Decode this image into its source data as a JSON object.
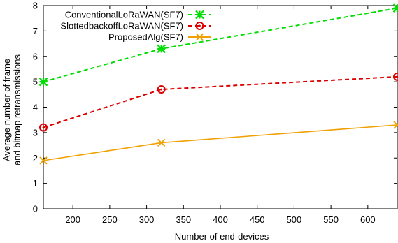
{
  "chart_data": {
    "type": "line",
    "xlabel": "Number of end-devices",
    "ylabel": [
      "Average number of frame",
      "and bitmap retransmissions"
    ],
    "xlim": [
      160,
      640
    ],
    "ylim": [
      0,
      8
    ],
    "xticks": [
      200,
      250,
      300,
      350,
      400,
      450,
      500,
      550,
      600
    ],
    "yticks": [
      0,
      1,
      2,
      3,
      4,
      5,
      6,
      7,
      8
    ],
    "grid": false,
    "legend_position": "top-right",
    "series": [
      {
        "name": "ConventionalLoRaWAN(SF7)",
        "color": "#00dd00",
        "dash": "dashed",
        "marker": "asterisk",
        "x": [
          160,
          320,
          640
        ],
        "y": [
          5.0,
          6.3,
          7.9
        ]
      },
      {
        "name": "SlottedbackoffLoRaWAN(SF7)",
        "color": "#dd0000",
        "dash": "dashed",
        "marker": "circle-dot",
        "x": [
          160,
          320,
          640
        ],
        "y": [
          3.2,
          4.7,
          5.2
        ]
      },
      {
        "name": "ProposedAlg(SF7)",
        "color": "#f0a000",
        "dash": "solid",
        "marker": "x",
        "x": [
          160,
          320,
          640
        ],
        "y": [
          1.9,
          2.6,
          3.3
        ]
      }
    ]
  }
}
